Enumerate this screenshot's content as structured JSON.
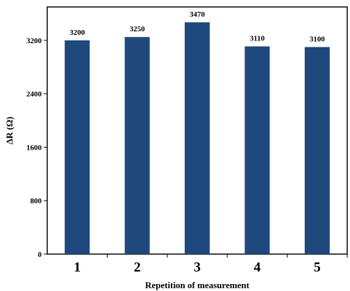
{
  "chart_data": {
    "type": "bar",
    "categories": [
      "1",
      "2",
      "3",
      "4",
      "5"
    ],
    "values": [
      3200,
      3250,
      3470,
      3110,
      3100
    ],
    "data_labels": [
      "3200",
      "3250",
      "3470",
      "3110",
      "3100"
    ],
    "xlabel": "Repetition of measurement",
    "ylabel": "ΔR (Ω)",
    "ylim": [
      0,
      3700
    ],
    "yticks": [
      "0",
      "800",
      "1600",
      "2400",
      "3200"
    ],
    "ytick_values": [
      0,
      800,
      1600,
      2400,
      3200
    ],
    "grid": false,
    "bar_color": "#1f487c"
  }
}
